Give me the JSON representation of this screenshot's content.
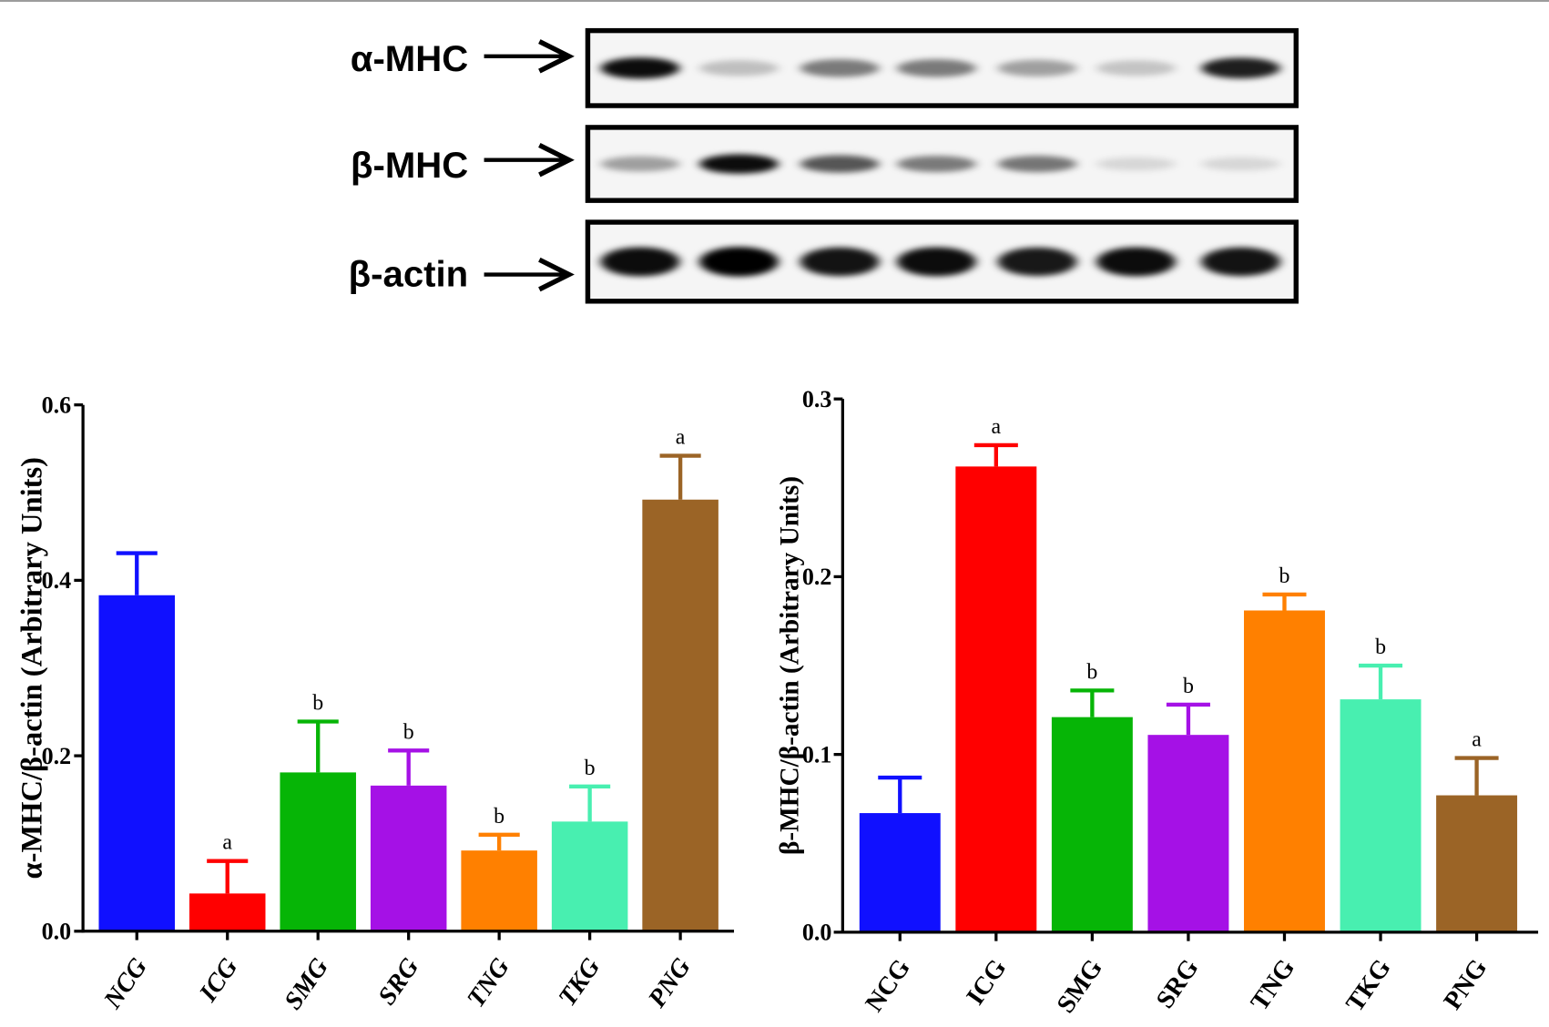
{
  "blot": {
    "rows": [
      {
        "label": "α-MHC",
        "band_intensity": [
          0.95,
          0.22,
          0.5,
          0.5,
          0.35,
          0.2,
          0.88
        ]
      },
      {
        "label": "β-MHC",
        "band_intensity": [
          0.35,
          0.95,
          0.65,
          0.5,
          0.52,
          0.12,
          0.12
        ]
      },
      {
        "label": "β-actin",
        "band_intensity": [
          0.95,
          1.0,
          0.92,
          0.95,
          0.9,
          0.95,
          0.92
        ]
      }
    ]
  },
  "chart_data": [
    {
      "type": "bar",
      "ylabel": "α-MHC/β-actin (Arbitrary Units)",
      "categories": [
        "NCG",
        "ICG",
        "SMG",
        "SRG",
        "TNG",
        "TKG",
        "PNG"
      ],
      "values": [
        0.383,
        0.043,
        0.181,
        0.166,
        0.092,
        0.125,
        0.492
      ],
      "errors": [
        0.048,
        0.037,
        0.058,
        0.04,
        0.018,
        0.04,
        0.05
      ],
      "labels": [
        "",
        "a",
        "b",
        "b",
        "b",
        "b",
        "a"
      ],
      "ylim": [
        0,
        0.6
      ],
      "yticks": [
        "0.0",
        "0.2",
        "0.4",
        "0.6"
      ],
      "colors": [
        "#1010ff",
        "#ff0000",
        "#06b506",
        "#a511e6",
        "#ff8000",
        "#48efb0",
        "#9b6426"
      ]
    },
    {
      "type": "bar",
      "ylabel": "β-MHC/β-actin (Arbitrary Units)",
      "categories": [
        "NCG",
        "ICG",
        "SMG",
        "SRG",
        "TNG",
        "TKG",
        "PNG"
      ],
      "values": [
        0.067,
        0.262,
        0.121,
        0.111,
        0.181,
        0.131,
        0.077
      ],
      "errors": [
        0.02,
        0.012,
        0.015,
        0.017,
        0.009,
        0.019,
        0.021
      ],
      "labels": [
        "",
        "a",
        "b",
        "b",
        "b",
        "b",
        "a"
      ],
      "ylim": [
        0,
        0.3
      ],
      "yticks": [
        "0.0",
        "0.1",
        "0.2",
        "0.3"
      ],
      "colors": [
        "#1010ff",
        "#ff0000",
        "#06b506",
        "#a511e6",
        "#ff8000",
        "#48efb0",
        "#9b6426"
      ]
    }
  ]
}
